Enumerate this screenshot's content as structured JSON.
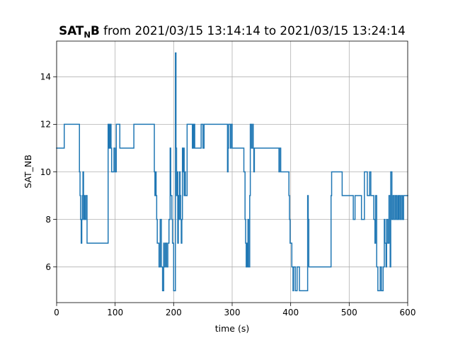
{
  "chart_data": {
    "type": "line",
    "title": {
      "bold_main": "SAT",
      "bold_sub": "N",
      "bold_tail": "B",
      "rest": " from 2021/03/15 13:14:14 to 2021/03/15 13:24:14"
    },
    "xlabel": "time (s)",
    "ylabel": "SAT_NB",
    "xlim": [
      0,
      600
    ],
    "ylim": [
      4.5,
      15.5
    ],
    "xticks": [
      0,
      100,
      200,
      300,
      400,
      500,
      600
    ],
    "yticks": [
      6,
      8,
      10,
      12,
      14
    ],
    "grid": true,
    "series": [
      {
        "color": "#1f77b4",
        "step": true,
        "x": [
          0,
          13,
          38,
          39,
          40,
          41,
          42,
          43,
          44,
          45,
          46,
          47,
          48,
          50,
          52,
          88,
          89,
          90,
          91,
          92,
          93,
          94,
          98,
          100,
          102,
          108,
          132,
          167,
          168,
          169,
          170,
          171,
          172,
          175,
          177,
          179,
          181,
          183,
          184,
          186,
          188,
          190,
          192,
          194,
          195,
          197,
          198,
          200,
          203,
          204,
          205,
          206,
          207,
          208,
          209,
          210,
          211,
          212,
          213,
          214,
          215,
          216,
          217,
          218,
          219,
          220,
          223,
          232,
          233,
          234,
          235,
          236,
          237,
          247,
          250,
          252,
          255,
          273,
          292,
          293,
          294,
          297,
          298,
          300,
          319,
          320,
          322,
          323,
          324,
          325,
          326,
          327,
          328,
          330,
          331,
          333,
          335,
          336,
          337,
          338,
          340,
          346,
          379,
          380,
          381,
          383,
          388,
          397,
          398,
          399,
          402,
          404,
          405,
          408,
          411,
          415,
          418,
          429,
          430,
          431,
          433,
          441,
          469,
          470,
          488,
          491,
          507,
          510,
          521,
          526,
          531,
          535,
          537,
          542,
          544,
          545,
          547,
          549,
          553,
          555,
          558,
          560,
          561,
          563,
          564,
          566,
          568,
          570,
          571,
          573,
          575,
          577,
          579,
          581,
          583,
          584,
          585,
          587,
          589,
          591,
          593,
          595,
          597,
          599,
          600
        ],
        "y": [
          11,
          12,
          12,
          10,
          9,
          8,
          7,
          8,
          9,
          10,
          8,
          9,
          8,
          9,
          7,
          12,
          11,
          12,
          11,
          12,
          11,
          10,
          11,
          10,
          12,
          11,
          12,
          10,
          9,
          10,
          9,
          8,
          7,
          6,
          8,
          6,
          5,
          7,
          6,
          7,
          6,
          7,
          8,
          11,
          9,
          8,
          7,
          5,
          15,
          11,
          9,
          10,
          7,
          9,
          8,
          10,
          9,
          8,
          7,
          8,
          11,
          10,
          11,
          9,
          10,
          9,
          12,
          11,
          12,
          11,
          12,
          11,
          11,
          12,
          11,
          12,
          12,
          12,
          10,
          11,
          12,
          11,
          12,
          11,
          11,
          10,
          8,
          7,
          6,
          7,
          6,
          8,
          6,
          9,
          12,
          11,
          12,
          11,
          10,
          11,
          11,
          11,
          11,
          10,
          11,
          10,
          10,
          9,
          8,
          7,
          6,
          5,
          6,
          5,
          6,
          5,
          5,
          9,
          8,
          6,
          6,
          6,
          9,
          10,
          9,
          9,
          8,
          9,
          8,
          10,
          9,
          10,
          9,
          8,
          7,
          9,
          6,
          5,
          6,
          5,
          6,
          8,
          7,
          6,
          8,
          7,
          9,
          6,
          10,
          8,
          9,
          8,
          9,
          8,
          9,
          8,
          9,
          8,
          9,
          8,
          9,
          9,
          9,
          9,
          9
        ]
      }
    ]
  }
}
